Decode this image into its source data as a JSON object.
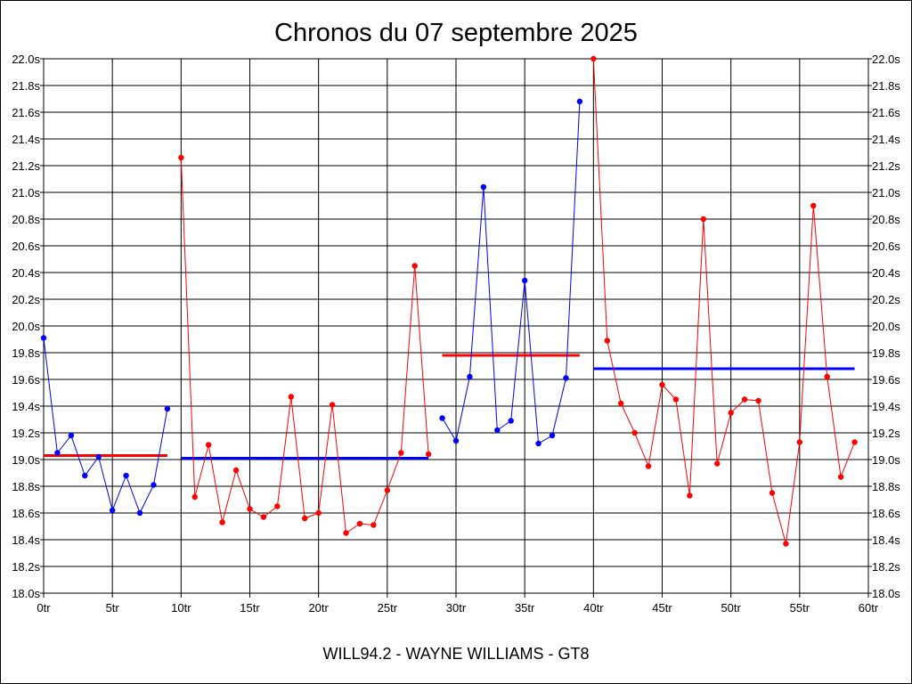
{
  "chart_data": {
    "type": "line",
    "title": "Chronos du 07 septembre 2025",
    "subtitle": "WILL94.2 - WAYNE WILLIAMS - GT8",
    "xlim": [
      0,
      60
    ],
    "ylim": [
      18.0,
      22.0
    ],
    "x_ticks": [
      "0tr",
      "5tr",
      "10tr",
      "15tr",
      "20tr",
      "25tr",
      "30tr",
      "35tr",
      "40tr",
      "45tr",
      "50tr",
      "55tr",
      "60tr"
    ],
    "y_ticks": [
      "18.0s",
      "18.2s",
      "18.4s",
      "18.6s",
      "18.8s",
      "19.0s",
      "19.2s",
      "19.4s",
      "19.6s",
      "19.8s",
      "20.0s",
      "20.2s",
      "20.4s",
      "20.6s",
      "20.8s",
      "21.0s",
      "21.2s",
      "21.4s",
      "21.6s",
      "21.8s",
      "22.0s"
    ],
    "grid": true,
    "colors": {
      "blue": "#0000ff",
      "red": "#ff0000"
    },
    "series": [
      {
        "color": "#0000ff",
        "x": [
          0,
          1,
          2,
          3,
          4,
          5,
          6,
          7,
          8,
          9
        ],
        "y": [
          19.91,
          19.05,
          19.18,
          18.88,
          19.02,
          18.62,
          18.88,
          18.6,
          18.81,
          19.38
        ]
      },
      {
        "color": "#ff0000",
        "x": [
          10,
          11,
          12,
          13,
          14,
          15,
          16,
          17,
          18,
          19,
          20,
          21,
          22,
          23,
          24,
          25,
          26,
          27,
          28
        ],
        "y": [
          21.26,
          18.72,
          19.11,
          18.53,
          18.92,
          18.63,
          18.57,
          18.65,
          19.47,
          18.56,
          18.6,
          19.41,
          18.45,
          18.52,
          18.51,
          18.77,
          19.05,
          20.45,
          19.04
        ]
      },
      {
        "color": "#0000ff",
        "x": [
          29,
          30,
          31,
          32,
          33,
          34,
          35,
          36,
          37,
          38,
          39
        ],
        "y": [
          19.31,
          19.14,
          19.62,
          21.04,
          19.22,
          19.29,
          20.34,
          19.12,
          19.18,
          19.61,
          21.68
        ]
      },
      {
        "color": "#ff0000",
        "x": [
          40,
          41,
          42,
          43,
          44,
          45,
          46,
          47,
          48,
          49,
          50,
          51,
          52,
          53,
          54,
          55,
          56,
          57,
          58,
          59
        ],
        "y": [
          22.0,
          19.89,
          19.42,
          19.2,
          18.95,
          19.56,
          19.45,
          18.73,
          20.8,
          18.97,
          19.35,
          19.45,
          19.44,
          18.75,
          18.37,
          19.13,
          20.9,
          19.62,
          18.87,
          19.13
        ]
      }
    ],
    "averages": [
      {
        "color": "#ff0000",
        "x": [
          0,
          9
        ],
        "y": 19.03
      },
      {
        "color": "#0000ff",
        "x": [
          10,
          28
        ],
        "y": 19.01
      },
      {
        "color": "#ff0000",
        "x": [
          29,
          39
        ],
        "y": 19.78
      },
      {
        "color": "#0000ff",
        "x": [
          40,
          59
        ],
        "y": 19.68
      }
    ]
  }
}
